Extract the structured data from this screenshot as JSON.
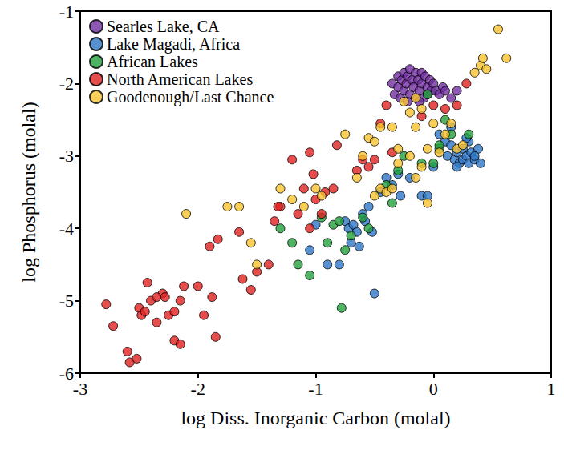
{
  "chart_data": {
    "type": "scatter",
    "x_label": "log Diss. Inorganic Carbon (molal)",
    "y_label": "log Phosphorus (molal)",
    "xlim": [
      -3,
      1
    ],
    "xticks": [
      -3,
      -2,
      -1,
      0,
      1
    ],
    "ylim": [
      -6,
      -1
    ],
    "yticks": [
      -6,
      -5,
      -4,
      -3,
      -2,
      -1
    ],
    "grid": false,
    "legend": "upper left",
    "marker": "circle",
    "series": [
      {
        "name": "Searles Lake, CA",
        "color": "#7030a0",
        "x": [
          -0.35,
          -0.33,
          -0.3,
          -0.3,
          -0.28,
          -0.27,
          -0.25,
          -0.25,
          -0.23,
          -0.22,
          -0.2,
          -0.2,
          -0.18,
          -0.17,
          -0.15,
          -0.15,
          -0.13,
          -0.12,
          -0.1,
          -0.1,
          -0.08,
          -0.07,
          -0.05,
          -0.05,
          -0.03,
          -0.02,
          0.0,
          0.02,
          0.05,
          0.08,
          0.1,
          0.15,
          0.2,
          -0.22,
          -0.12
        ],
        "values": [
          -2.0,
          -2.15,
          -1.9,
          -2.05,
          -2.2,
          -1.95,
          -1.85,
          -2.1,
          -2.0,
          -1.9,
          -1.8,
          -2.15,
          -1.95,
          -2.05,
          -1.85,
          -2.2,
          -1.95,
          -2.1,
          -1.85,
          -2.0,
          -2.2,
          -1.9,
          -2.05,
          -2.15,
          -1.95,
          -2.1,
          -2.0,
          -2.1,
          -2.15,
          -2.05,
          -2.1,
          -2.2,
          -2.1,
          -2.25,
          -2.25
        ]
      },
      {
        "name": "Lake Magadi, Africa",
        "color": "#2e75c6",
        "x": [
          -1.05,
          -1.0,
          -0.9,
          -0.8,
          -0.75,
          -0.72,
          -0.7,
          -0.68,
          -0.65,
          -0.63,
          -0.6,
          -0.58,
          -0.55,
          -0.52,
          -0.5,
          -0.45,
          -0.4,
          -0.35,
          -0.3,
          -0.28,
          -0.1,
          -0.05,
          -0.2,
          0.0,
          0.05,
          0.1,
          0.12,
          0.15,
          0.18,
          0.2,
          0.22,
          0.25,
          0.25,
          0.28,
          0.3,
          0.3,
          0.32,
          0.35,
          0.38,
          0.4,
          0.15,
          0.35,
          0.2,
          0.28
        ],
        "values": [
          -4.3,
          -3.95,
          -4.5,
          -4.5,
          -3.9,
          -4.0,
          -4.2,
          -3.95,
          -4.05,
          -4.25,
          -3.8,
          -3.9,
          -3.7,
          -4.05,
          -4.9,
          -3.5,
          -3.3,
          -3.4,
          -3.25,
          -3.55,
          -3.55,
          -3.55,
          -3.3,
          -3.15,
          -2.7,
          -2.8,
          -3.0,
          -2.85,
          -3.05,
          -2.95,
          -3.1,
          -2.9,
          -3.05,
          -3.0,
          -2.8,
          -3.1,
          -2.95,
          -3.05,
          -2.9,
          -3.1,
          -2.6,
          -3.0,
          -3.15,
          -2.75
        ]
      },
      {
        "name": "African Lakes",
        "color": "#22a03c",
        "x": [
          -1.3,
          -1.15,
          -1.05,
          -0.95,
          -0.85,
          -0.8,
          -0.78,
          -0.6,
          -0.55,
          -0.4,
          -0.3,
          -0.25,
          -0.1,
          0.0,
          0.05,
          0.15,
          0.3,
          -0.05,
          0.1,
          -1.2,
          -0.9,
          -0.75,
          0.05,
          -0.35,
          -0.7
        ],
        "values": [
          -4.0,
          -4.5,
          -4.65,
          -3.85,
          -3.95,
          -3.9,
          -5.1,
          -3.85,
          -4.0,
          -3.4,
          -3.2,
          -3.0,
          -3.1,
          -3.1,
          -2.9,
          -2.7,
          -2.7,
          -2.15,
          -2.5,
          -4.2,
          -4.2,
          -4.3,
          -2.85,
          -3.65,
          -4.1
        ]
      },
      {
        "name": "North American Lakes",
        "color": "#e02020",
        "x": [
          -2.78,
          -2.72,
          -2.6,
          -2.58,
          -2.52,
          -2.5,
          -2.48,
          -2.45,
          -2.43,
          -2.4,
          -2.35,
          -2.3,
          -2.25,
          -2.2,
          -2.2,
          -2.15,
          -2.12,
          -2.15,
          -2.35,
          -2.28,
          -2.0,
          -1.95,
          -1.9,
          -1.88,
          -1.85,
          -1.83,
          -1.65,
          -1.62,
          -1.55,
          -1.5,
          -1.4,
          -1.35,
          -1.3,
          -1.32,
          -1.2,
          -1.15,
          -1.1,
          -1.05,
          -1.02,
          -1.0,
          -0.95,
          -0.92,
          -0.85,
          -0.82,
          -0.65,
          -0.6,
          -0.55,
          -0.5,
          -0.45,
          -0.4,
          -0.35,
          -0.1,
          0.0,
          0.1,
          0.2,
          0.28,
          -1.05
        ],
        "values": [
          -5.05,
          -5.35,
          -5.7,
          -5.85,
          -5.8,
          -5.1,
          -5.2,
          -5.15,
          -4.75,
          -5.0,
          -5.3,
          -4.9,
          -5.2,
          -5.15,
          -5.55,
          -5.6,
          -4.8,
          -5.0,
          -4.95,
          -4.95,
          -4.8,
          -5.2,
          -4.25,
          -4.95,
          -5.5,
          -4.15,
          -4.05,
          -4.7,
          -4.85,
          -4.6,
          -4.5,
          -3.9,
          -3.7,
          -3.7,
          -3.05,
          -3.8,
          -3.45,
          -4.0,
          -3.25,
          -3.6,
          -3.8,
          -3.5,
          -3.45,
          -2.85,
          -3.2,
          -3.05,
          -3.15,
          -3.05,
          -2.55,
          -2.3,
          -2.95,
          -2.45,
          -2.3,
          -2.35,
          -2.3,
          -2.0,
          -2.95
        ]
      },
      {
        "name": "Goodenough/Last Chance",
        "color": "#f7c230",
        "x": [
          -2.1,
          -1.75,
          -1.65,
          -1.55,
          -1.5,
          -1.3,
          -1.2,
          -1.1,
          -1.0,
          -0.95,
          -0.75,
          -0.65,
          -0.6,
          -0.55,
          -0.5,
          -0.45,
          -0.45,
          -0.4,
          -0.35,
          -0.3,
          -0.3,
          -0.25,
          -0.2,
          -0.2,
          -0.15,
          -0.15,
          -0.1,
          -0.1,
          -0.05,
          -0.05,
          0.0,
          0.05,
          0.1,
          0.15,
          0.2,
          0.25,
          0.35,
          0.4,
          0.45,
          0.42,
          0.55,
          0.62,
          -0.35,
          -0.5,
          -0.15
        ],
        "values": [
          -3.8,
          -3.7,
          -3.7,
          -4.2,
          -4.5,
          -3.45,
          -3.6,
          -3.7,
          -3.45,
          -3.55,
          -2.7,
          -3.3,
          -3.0,
          -2.75,
          -2.8,
          -2.6,
          -3.45,
          -3.5,
          -2.6,
          -2.9,
          -3.1,
          -2.25,
          -2.4,
          -3.0,
          -2.2,
          -2.6,
          -2.35,
          -3.15,
          -2.9,
          -3.65,
          -2.55,
          -2.95,
          -2.7,
          -2.55,
          -2.9,
          -2.85,
          -1.85,
          -1.75,
          -1.8,
          -1.65,
          -1.25,
          -1.65,
          -3.45,
          -3.55,
          -3.3
        ]
      }
    ]
  }
}
